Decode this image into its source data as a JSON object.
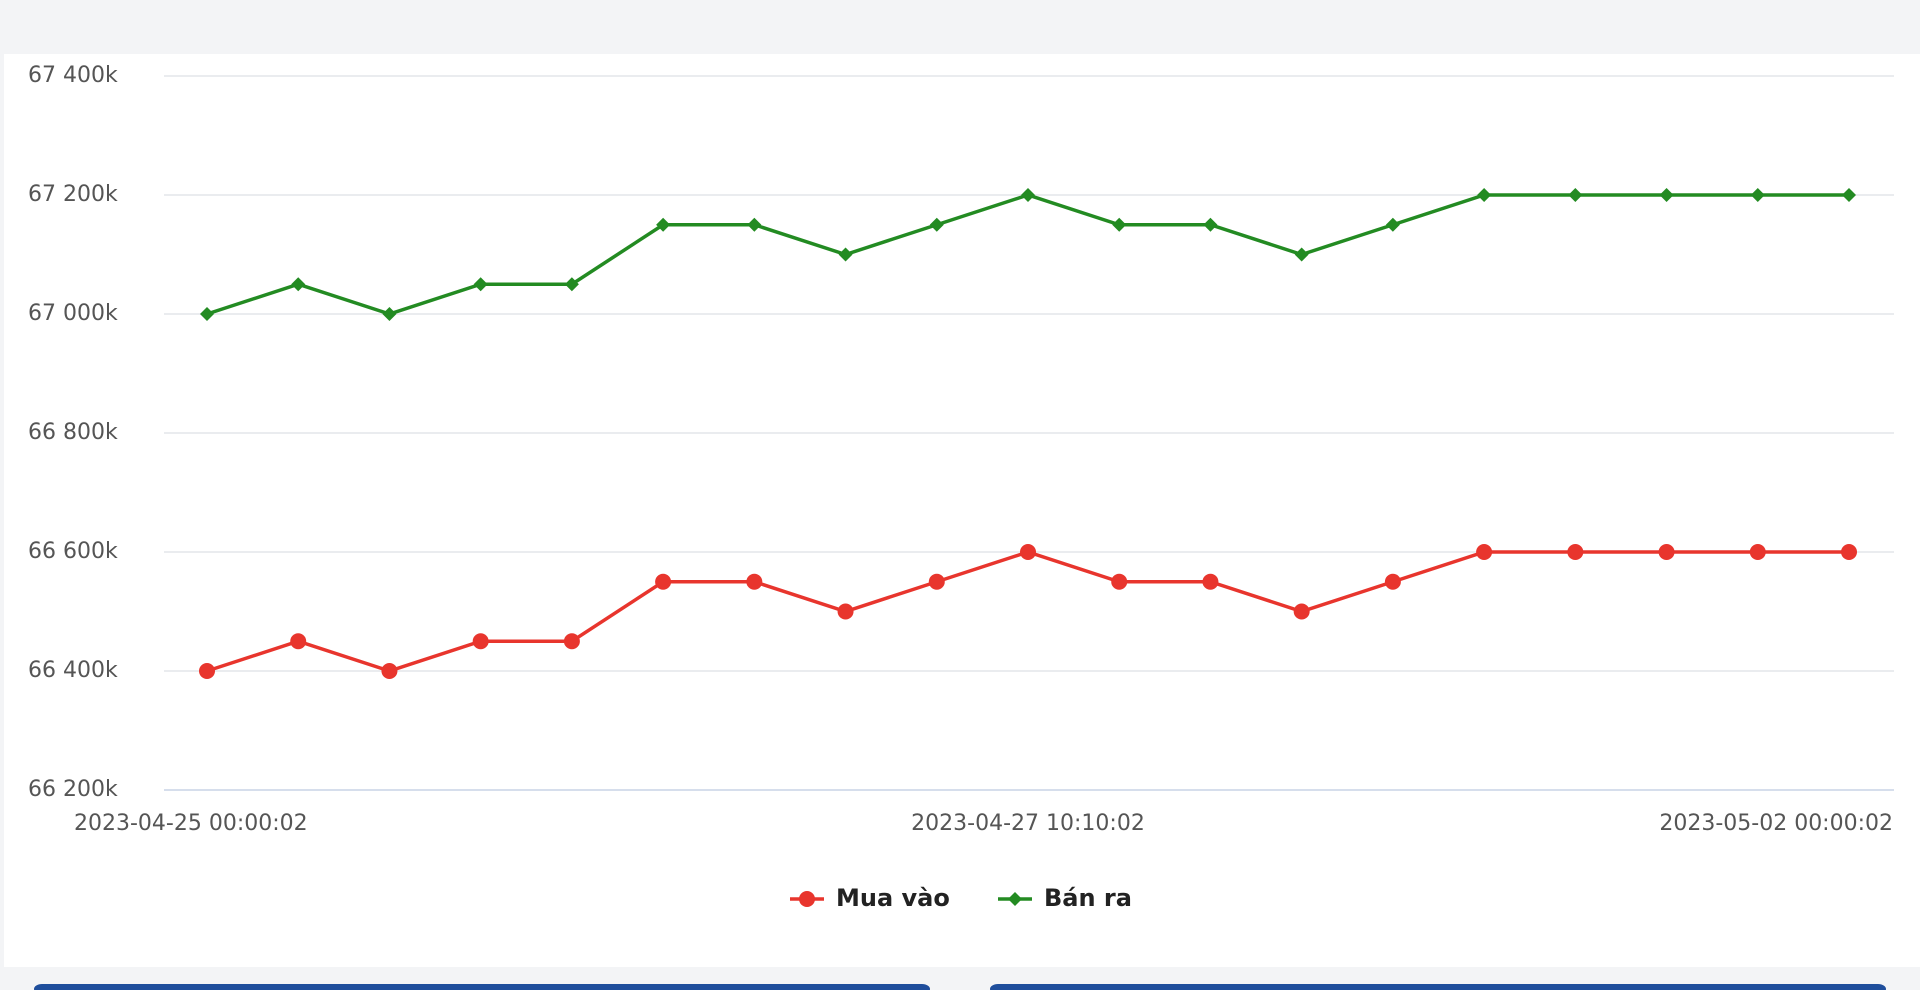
{
  "chart_data": {
    "type": "line",
    "categories": [
      "2023-04-25 00:00:02",
      null,
      null,
      null,
      null,
      null,
      null,
      null,
      null,
      "2023-04-27 10:10:02",
      null,
      null,
      null,
      null,
      null,
      null,
      null,
      null,
      "2023-05-02 00:00:02"
    ],
    "series": [
      {
        "name": "Mua vào",
        "color": "#e8352d",
        "marker": "circle",
        "values": [
          66400000,
          66450000,
          66400000,
          66450000,
          66450000,
          66550000,
          66550000,
          66500000,
          66550000,
          66600000,
          66550000,
          66550000,
          66500000,
          66550000,
          66600000,
          66600000,
          66600000,
          66600000,
          66600000
        ]
      },
      {
        "name": "Bán ra",
        "color": "#238b22",
        "marker": "diamond",
        "values": [
          67000000,
          67050000,
          67000000,
          67050000,
          67050000,
          67150000,
          67150000,
          67100000,
          67150000,
          67200000,
          67150000,
          67150000,
          67100000,
          67150000,
          67200000,
          67200000,
          67200000,
          67200000,
          67200000
        ]
      }
    ],
    "ylim": [
      66200000,
      67400000
    ],
    "yticks": [
      {
        "value": 66200000,
        "label": "66 200k"
      },
      {
        "value": 66400000,
        "label": "66 400k"
      },
      {
        "value": 66600000,
        "label": "66 600k"
      },
      {
        "value": 66800000,
        "label": "66 800k"
      },
      {
        "value": 67000000,
        "label": "67 000k"
      },
      {
        "value": 67200000,
        "label": "67 200k"
      },
      {
        "value": 67400000,
        "label": "67 400k"
      }
    ],
    "grid": true,
    "legend": "bottom"
  }
}
